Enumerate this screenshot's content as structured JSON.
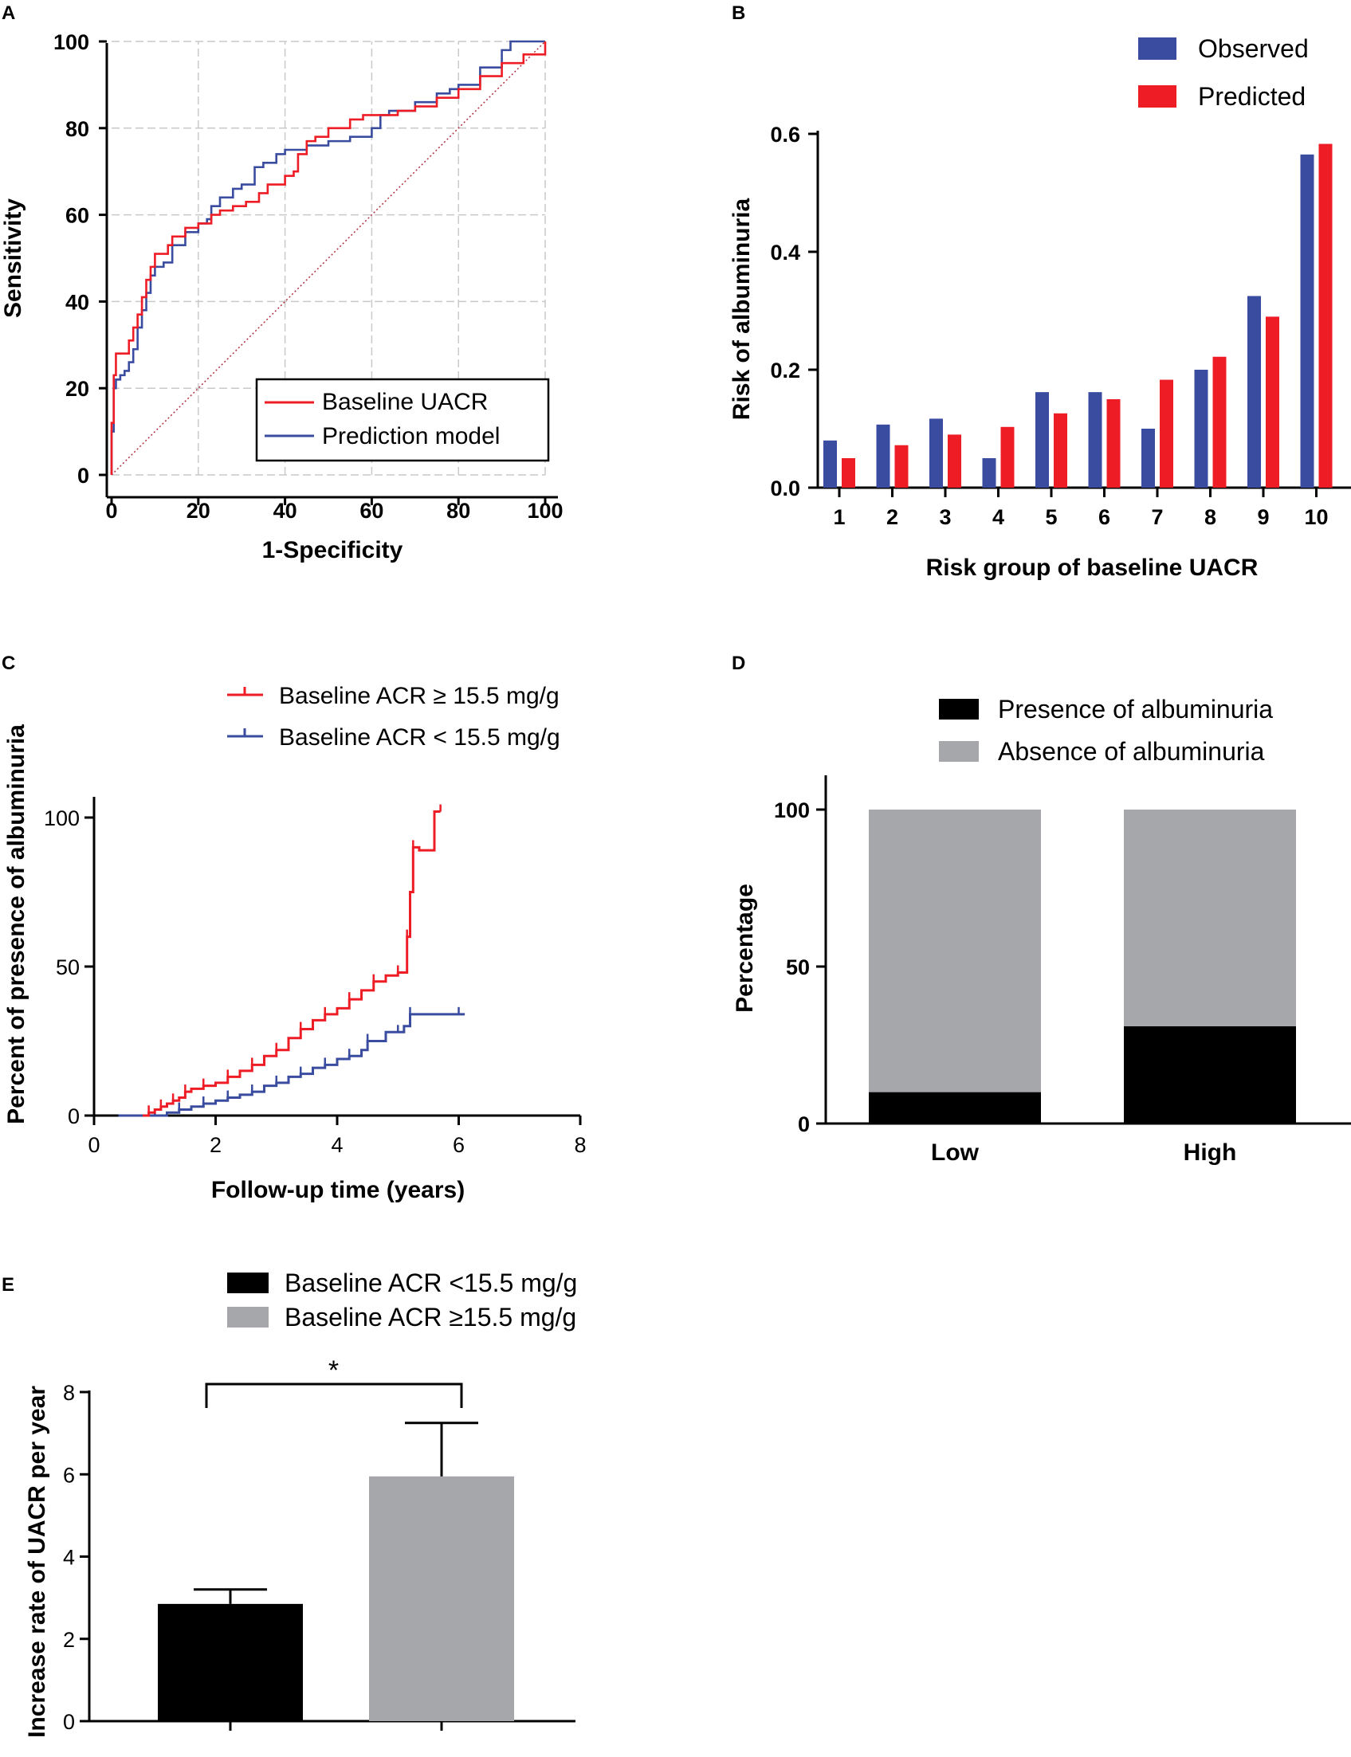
{
  "chart_data": [
    {
      "panel": "A",
      "type": "line",
      "title": "",
      "xlabel": "1-Specificity",
      "ylabel": "Sensitivity",
      "xlim": [
        0,
        100
      ],
      "ylim": [
        0,
        100
      ],
      "xticks": [
        "0",
        "20",
        "40",
        "60",
        "80",
        "100"
      ],
      "yticks": [
        "0",
        "20",
        "40",
        "60",
        "80",
        "100"
      ],
      "grid": true,
      "legend_position": "bottom-right",
      "colors": {
        "uacr": "#ee1c25",
        "model": "#3a4ca0",
        "diagonal": "#b03040"
      },
      "series": [
        {
          "name": "Baseline UACR",
          "x": [
            0,
            0,
            0.5,
            1,
            1,
            2,
            4,
            4,
            5,
            6,
            7,
            8,
            9,
            10,
            11,
            13,
            14,
            17,
            20,
            22,
            23,
            25,
            28,
            31,
            34,
            36,
            40,
            42,
            43,
            45,
            47,
            50,
            53,
            55,
            58,
            60,
            64,
            66,
            70,
            75,
            80,
            85,
            90,
            95,
            100
          ],
          "y": [
            0,
            12,
            23,
            25,
            28,
            28,
            29,
            31,
            34,
            37,
            41,
            45,
            48,
            51,
            51,
            53,
            55,
            57,
            58,
            58,
            60,
            61,
            62,
            63,
            65,
            67,
            69,
            70,
            74,
            77,
            78,
            80,
            80,
            82,
            83,
            83,
            83,
            84,
            85,
            87,
            89,
            92,
            95,
            97,
            100
          ]
        },
        {
          "name": "Prediction model",
          "x": [
            0,
            0,
            0.5,
            1,
            2,
            3,
            4,
            5,
            6,
            7,
            8,
            9,
            10,
            12,
            14,
            17,
            20,
            22,
            23,
            25,
            28,
            30,
            33,
            35,
            38,
            40,
            45,
            50,
            52,
            55,
            58,
            60,
            62,
            64,
            66,
            70,
            75,
            78,
            80,
            85,
            90,
            92,
            95,
            100
          ],
          "y": [
            0,
            10,
            20,
            22,
            23,
            24,
            26,
            29,
            34,
            38,
            42,
            46,
            48,
            49,
            53,
            56,
            58,
            59,
            62,
            64,
            66,
            67,
            71,
            72,
            74,
            75,
            76,
            77,
            77,
            78,
            78,
            80,
            83,
            84,
            84,
            86,
            88,
            89,
            90,
            94,
            98,
            100,
            100,
            100
          ]
        },
        {
          "name": "Reference",
          "x": [
            0,
            100
          ],
          "y": [
            0,
            100
          ]
        }
      ]
    },
    {
      "panel": "B",
      "type": "bar",
      "xlabel": "Risk group of baseline UACR",
      "ylabel": "Risk of albuminuria",
      "ylim": [
        0,
        0.6
      ],
      "yticks": [
        "0.0",
        "0.2",
        "0.4",
        "0.6"
      ],
      "categories": [
        "1",
        "2",
        "3",
        "4",
        "5",
        "6",
        "7",
        "8",
        "9",
        "10"
      ],
      "legend_position": "top-right",
      "colors": {
        "observed": "#3a4ca0",
        "predicted": "#ee1c25"
      },
      "series": [
        {
          "name": "Observed",
          "values": [
            0.08,
            0.107,
            0.117,
            0.05,
            0.162,
            0.162,
            0.1,
            0.2,
            0.325,
            0.565
          ]
        },
        {
          "name": "Predicted",
          "values": [
            0.05,
            0.072,
            0.09,
            0.103,
            0.126,
            0.15,
            0.183,
            0.222,
            0.29,
            0.583
          ]
        }
      ]
    },
    {
      "panel": "C",
      "type": "line",
      "xlabel": "Follow-up time (years)",
      "ylabel": "Percent of presence of albuminuria",
      "xlim": [
        0,
        8
      ],
      "ylim": [
        0,
        100
      ],
      "xticks": [
        "0",
        "2",
        "4",
        "6",
        "8"
      ],
      "yticks": [
        "0",
        "50",
        "100"
      ],
      "legend_position": "top",
      "colors": {
        "high": "#ee1c25",
        "low": "#3a4ca0"
      },
      "series": [
        {
          "name": "Baseline ACR ≥ 15.5 mg/g",
          "x": [
            0.8,
            0.9,
            1.0,
            1.1,
            1.2,
            1.3,
            1.4,
            1.5,
            1.6,
            1.8,
            2.0,
            2.2,
            2.4,
            2.6,
            2.8,
            3.0,
            3.2,
            3.4,
            3.6,
            3.8,
            4.0,
            4.2,
            4.4,
            4.6,
            4.8,
            5.0,
            5.1,
            5.15,
            5.2,
            5.25,
            5.35,
            5.6,
            5.6,
            5.7
          ],
          "y": [
            0,
            1,
            2,
            3,
            4,
            5,
            6,
            8,
            9,
            10,
            11,
            13,
            15,
            17,
            20,
            22,
            26,
            29,
            32,
            34,
            36,
            39,
            42,
            45,
            47,
            48,
            48,
            60,
            75,
            90,
            89,
            89,
            102,
            102
          ]
        },
        {
          "name": "Baseline ACR < 15.5 mg/g",
          "x": [
            0.4,
            1.0,
            1.2,
            1.4,
            1.6,
            1.8,
            2.0,
            2.2,
            2.4,
            2.6,
            2.8,
            3.0,
            3.2,
            3.4,
            3.6,
            3.8,
            4.0,
            4.2,
            4.4,
            4.5,
            4.8,
            5.0,
            5.1,
            5.2,
            5.6,
            6.0,
            6.1
          ],
          "y": [
            0,
            0,
            1,
            2,
            3,
            4,
            5,
            6,
            7,
            8,
            10,
            11,
            13,
            14,
            16,
            17,
            19,
            20,
            22,
            25,
            28,
            28,
            30,
            34,
            34,
            34,
            34
          ]
        }
      ]
    },
    {
      "panel": "D",
      "type": "bar",
      "stacked": true,
      "xlabel": "",
      "ylabel": "Percentage",
      "ylim": [
        0,
        100
      ],
      "yticks": [
        "0",
        "50",
        "100"
      ],
      "categories": [
        "Low",
        "High"
      ],
      "legend_position": "top",
      "colors": {
        "presence": "#000000",
        "absence": "#a6a7ab"
      },
      "series": [
        {
          "name": "Presence of albuminuria",
          "values": [
            10,
            31
          ]
        },
        {
          "name": "Absence of albuminuria",
          "values": [
            90,
            69
          ]
        }
      ]
    },
    {
      "panel": "E",
      "type": "bar",
      "xlabel": "",
      "ylabel": "Increase rate of UACR per year",
      "ylim": [
        0,
        8
      ],
      "yticks": [
        "0",
        "2",
        "4",
        "6",
        "8"
      ],
      "categories": [
        "Baseline ACR <15.5 mg/g",
        "Baseline ACR ≥15.5 mg/g"
      ],
      "values": [
        2.85,
        5.95
      ],
      "error_upper": [
        3.2,
        7.25
      ],
      "colors": [
        "#000000",
        "#a6a7ab"
      ],
      "significance": "*",
      "legend_position": "top"
    }
  ],
  "panel_labels": [
    "A",
    "B",
    "C",
    "D",
    "E"
  ]
}
